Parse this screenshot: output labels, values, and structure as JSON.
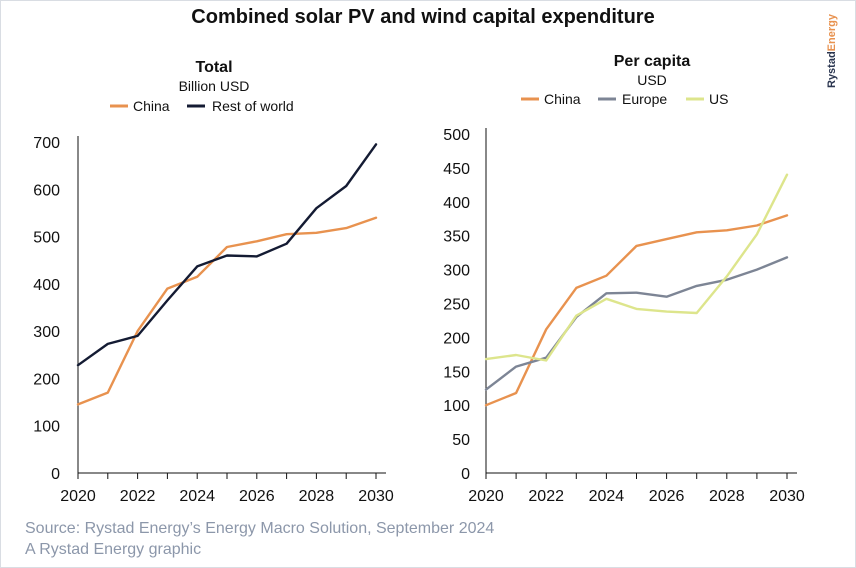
{
  "title": "Combined solar PV and wind capital expenditure",
  "brand": {
    "part1": "Rystad",
    "part2": "Energy"
  },
  "footer": {
    "source": "Source: Rystad Energy’s Energy Macro Solution, September 2024",
    "credit": "A Rystad Energy graphic"
  },
  "colors": {
    "china": "#e8924f",
    "rest_of_world": "#141b33",
    "europe": "#7d8595",
    "us": "#dde58c",
    "axis": "#111111"
  },
  "chart_data": [
    {
      "type": "line",
      "title": "Total",
      "subtitle": "Billion USD",
      "x": [
        2020,
        2021,
        2022,
        2023,
        2024,
        2025,
        2026,
        2027,
        2028,
        2029,
        2030
      ],
      "xticks": [
        "2020",
        "2022",
        "2024",
        "2026",
        "2028",
        "2030"
      ],
      "yticks": [
        "0",
        "100",
        "200",
        "300",
        "400",
        "500",
        "600",
        "700"
      ],
      "ylim": [
        0,
        700
      ],
      "legend_position": "top",
      "grid": false,
      "series": [
        {
          "name": "China",
          "color": "#e8924f",
          "values": [
            145,
            170,
            300,
            390,
            415,
            478,
            490,
            505,
            508,
            518,
            540
          ]
        },
        {
          "name": "Rest of world",
          "color": "#141b33",
          "values": [
            228,
            273,
            290,
            365,
            437,
            460,
            458,
            485,
            560,
            607,
            695
          ]
        }
      ]
    },
    {
      "type": "line",
      "title": "Per capita",
      "subtitle": "USD",
      "x": [
        2020,
        2021,
        2022,
        2023,
        2024,
        2025,
        2026,
        2027,
        2028,
        2029,
        2030
      ],
      "xticks": [
        "2020",
        "2022",
        "2024",
        "2026",
        "2028",
        "2030"
      ],
      "yticks": [
        "0",
        "50",
        "100",
        "150",
        "200",
        "250",
        "300",
        "350",
        "400",
        "450",
        "500"
      ],
      "ylim": [
        0,
        500
      ],
      "legend_position": "top",
      "grid": false,
      "series": [
        {
          "name": "China",
          "color": "#e8924f",
          "values": [
            100,
            118,
            212,
            273,
            291,
            335,
            345,
            355,
            358,
            365,
            380
          ]
        },
        {
          "name": "Europe",
          "color": "#7d8595",
          "values": [
            123,
            157,
            170,
            230,
            265,
            266,
            260,
            276,
            285,
            300,
            318
          ]
        },
        {
          "name": "US",
          "color": "#dde58c",
          "values": [
            168,
            174,
            166,
            232,
            257,
            242,
            238,
            236,
            290,
            352,
            440
          ]
        }
      ]
    }
  ]
}
